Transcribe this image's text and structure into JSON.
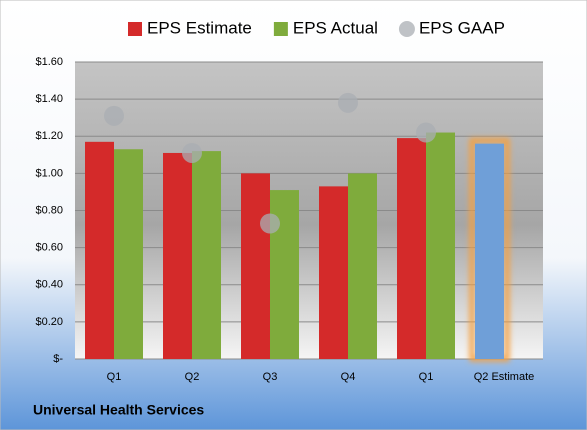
{
  "chart_data": {
    "type": "bar",
    "title": "Universal Health Services",
    "categories": [
      "Q1",
      "Q2",
      "Q3",
      "Q4",
      "Q1",
      "Q2 Estimate"
    ],
    "series": [
      {
        "name": "EPS Estimate",
        "color": "#d42a2a",
        "colors": [
          "#d42a2a",
          "#d42a2a",
          "#d42a2a",
          "#d42a2a",
          "#d42a2a",
          "#6f9fd8"
        ],
        "values": [
          1.17,
          1.11,
          1.0,
          0.93,
          1.19,
          1.16
        ]
      },
      {
        "name": "EPS Actual",
        "color": "#7fab3c",
        "values": [
          1.13,
          1.12,
          0.91,
          1.0,
          1.22,
          null
        ]
      },
      {
        "name": "EPS GAAP",
        "color": "#a9adb3",
        "type": "scatter",
        "values": [
          1.31,
          1.11,
          0.73,
          1.38,
          1.22,
          null
        ]
      }
    ],
    "ylim": [
      0,
      1.6
    ],
    "yticks": [
      {
        "value": 0,
        "label": "$-"
      },
      {
        "value": 0.2,
        "label": "$0.20"
      },
      {
        "value": 0.4,
        "label": "$0.40"
      },
      {
        "value": 0.6,
        "label": "$0.60"
      },
      {
        "value": 0.8,
        "label": "$0.80"
      },
      {
        "value": 1.0,
        "label": "$1.00"
      },
      {
        "value": 1.2,
        "label": "$1.20"
      },
      {
        "value": 1.4,
        "label": "$1.40"
      },
      {
        "value": 1.6,
        "label": "$1.60"
      }
    ],
    "grid": true,
    "legend": "top"
  }
}
